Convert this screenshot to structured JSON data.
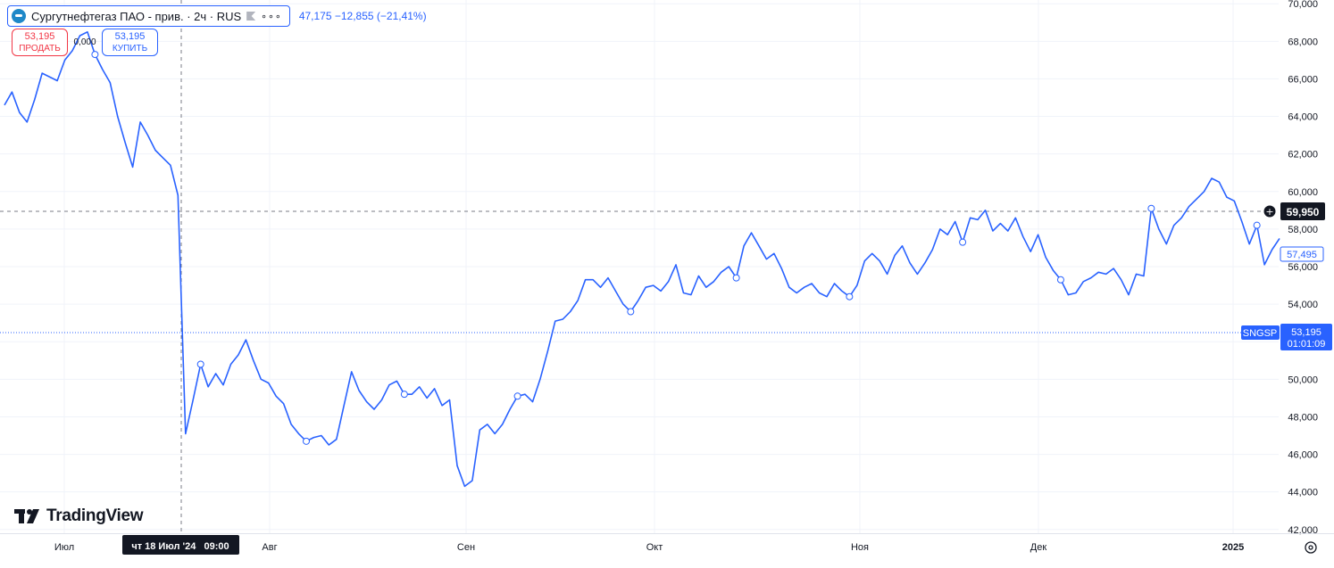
{
  "legend": {
    "symbol_title": "Сургутнефтегаз ПАО - прив. · 2ч · RUS",
    "change_text": "47,175 −12,855 (−21,41%)",
    "logo_icon": "sngs-logo-icon",
    "flag_icon": "flag-icon",
    "more_icon": "more-dots-icon",
    "more_label": "∘∘∘"
  },
  "trade": {
    "sell_price": "53,195",
    "sell_label": "ПРОДАТЬ",
    "spread": "0,000",
    "buy_price": "53,195",
    "buy_label": "КУПИТЬ"
  },
  "watermark": {
    "text": "TradingView",
    "icon": "tradingview-logo-icon"
  },
  "crosshair": {
    "time_label": "чт 18 Июл '24   09:00",
    "price_label": "59,950"
  },
  "price_tags": {
    "last": "57,495",
    "ticker": "SNGSP",
    "ticker_price": "53,195",
    "countdown": "01:01:09"
  },
  "colors": {
    "line": "#2962ff",
    "grid": "#f0f3fa",
    "text": "#131722",
    "sell": "#f23645",
    "dark": "#131722"
  },
  "chart_data": {
    "type": "line",
    "title": "Сургутнефтегаз ПАО - прив. · 2ч · RUS",
    "xlabel": "",
    "ylabel": "",
    "x_tick_labels": [
      "Июл",
      "Авг",
      "Сен",
      "Окт",
      "Ноя",
      "Дек",
      "2025"
    ],
    "y_tick_labels": [
      "42,000",
      "44,000",
      "46,000",
      "48,000",
      "50,000",
      "52,000",
      "54,000",
      "56,000",
      "58,000",
      "60,000",
      "62,000",
      "64,000",
      "66,000",
      "68,000",
      "70,000"
    ],
    "ylim": [
      41.8,
      70.2
    ],
    "grid": true,
    "series": [
      {
        "values": [
          {
            "x": "2024-07-01",
            "y": 64.6
          },
          {
            "x": "2024-07-02",
            "y": 65.3
          },
          {
            "x": "2024-07-03",
            "y": 64.2
          },
          {
            "x": "2024-07-04",
            "y": 63.7
          },
          {
            "x": "2024-07-05",
            "y": 64.9
          },
          {
            "x": "2024-07-06",
            "y": 66.3
          },
          {
            "x": "2024-07-08",
            "y": 65.9
          },
          {
            "x": "2024-07-09",
            "y": 67.0
          },
          {
            "x": "2024-07-10",
            "y": 67.5
          },
          {
            "x": "2024-07-11",
            "y": 68.3
          },
          {
            "x": "2024-07-12",
            "y": 68.5
          },
          {
            "x": "2024-07-13",
            "y": 67.3
          },
          {
            "x": "2024-07-14",
            "y": 66.5
          },
          {
            "x": "2024-07-15",
            "y": 65.8
          },
          {
            "x": "2024-07-16",
            "y": 64.0
          },
          {
            "x": "2024-07-17",
            "y": 62.6
          },
          {
            "x": "2024-07-18",
            "y": 61.3
          },
          {
            "x": "2024-07-19",
            "y": 63.7
          },
          {
            "x": "2024-07-20",
            "y": 63.0
          },
          {
            "x": "2024-07-21",
            "y": 62.2
          },
          {
            "x": "2024-07-22",
            "y": 61.8
          },
          {
            "x": "2024-07-23",
            "y": 61.4
          },
          {
            "x": "2024-07-24",
            "y": 59.8
          },
          {
            "x": "2024-07-25",
            "y": 47.1
          },
          {
            "x": "2024-07-26",
            "y": 48.9
          },
          {
            "x": "2024-07-27",
            "y": 50.8
          },
          {
            "x": "2024-07-28",
            "y": 49.6
          },
          {
            "x": "2024-07-29",
            "y": 50.3
          },
          {
            "x": "2024-07-30",
            "y": 49.7
          },
          {
            "x": "2024-07-31",
            "y": 50.8
          },
          {
            "x": "2024-08-01",
            "y": 51.3
          },
          {
            "x": "2024-08-02",
            "y": 52.1
          },
          {
            "x": "2024-08-03",
            "y": 51.0
          },
          {
            "x": "2024-08-04",
            "y": 50.0
          },
          {
            "x": "2024-08-05",
            "y": 49.8
          },
          {
            "x": "2024-08-06",
            "y": 49.1
          },
          {
            "x": "2024-08-07",
            "y": 48.7
          },
          {
            "x": "2024-08-08",
            "y": 47.6
          },
          {
            "x": "2024-08-09",
            "y": 47.1
          },
          {
            "x": "2024-08-10",
            "y": 46.7
          },
          {
            "x": "2024-08-11",
            "y": 46.9
          },
          {
            "x": "2024-08-12",
            "y": 47.0
          },
          {
            "x": "2024-08-13",
            "y": 46.5
          },
          {
            "x": "2024-08-14",
            "y": 46.8
          },
          {
            "x": "2024-08-15",
            "y": 48.6
          },
          {
            "x": "2024-08-16",
            "y": 50.4
          },
          {
            "x": "2024-08-17",
            "y": 49.4
          },
          {
            "x": "2024-08-18",
            "y": 48.8
          },
          {
            "x": "2024-08-19",
            "y": 48.4
          },
          {
            "x": "2024-08-20",
            "y": 48.9
          },
          {
            "x": "2024-08-21",
            "y": 49.7
          },
          {
            "x": "2024-08-22",
            "y": 49.9
          },
          {
            "x": "2024-08-23",
            "y": 49.2
          },
          {
            "x": "2024-08-24",
            "y": 49.2
          },
          {
            "x": "2024-08-25",
            "y": 49.6
          },
          {
            "x": "2024-08-26",
            "y": 49.0
          },
          {
            "x": "2024-08-27",
            "y": 49.5
          },
          {
            "x": "2024-08-28",
            "y": 48.6
          },
          {
            "x": "2024-08-29",
            "y": 48.9
          },
          {
            "x": "2024-08-30",
            "y": 45.4
          },
          {
            "x": "2024-08-31",
            "y": 44.3
          },
          {
            "x": "2024-09-01",
            "y": 44.6
          },
          {
            "x": "2024-09-02",
            "y": 47.3
          },
          {
            "x": "2024-09-03",
            "y": 47.6
          },
          {
            "x": "2024-09-04",
            "y": 47.1
          },
          {
            "x": "2024-09-05",
            "y": 47.6
          },
          {
            "x": "2024-09-06",
            "y": 48.4
          },
          {
            "x": "2024-09-07",
            "y": 49.1
          },
          {
            "x": "2024-09-08",
            "y": 49.2
          },
          {
            "x": "2024-09-09",
            "y": 48.8
          },
          {
            "x": "2024-09-10",
            "y": 50.0
          },
          {
            "x": "2024-09-11",
            "y": 51.5
          },
          {
            "x": "2024-09-12",
            "y": 53.1
          },
          {
            "x": "2024-09-13",
            "y": 53.2
          },
          {
            "x": "2024-09-14",
            "y": 53.6
          },
          {
            "x": "2024-09-15",
            "y": 54.2
          },
          {
            "x": "2024-09-16",
            "y": 55.3
          },
          {
            "x": "2024-09-17",
            "y": 55.3
          },
          {
            "x": "2024-09-18",
            "y": 54.9
          },
          {
            "x": "2024-09-19",
            "y": 55.4
          },
          {
            "x": "2024-09-20",
            "y": 54.7
          },
          {
            "x": "2024-09-21",
            "y": 54.0
          },
          {
            "x": "2024-09-22",
            "y": 53.6
          },
          {
            "x": "2024-09-23",
            "y": 54.2
          },
          {
            "x": "2024-09-24",
            "y": 54.9
          },
          {
            "x": "2024-09-25",
            "y": 55.0
          },
          {
            "x": "2024-09-26",
            "y": 54.7
          },
          {
            "x": "2024-09-27",
            "y": 55.2
          },
          {
            "x": "2024-09-28",
            "y": 56.1
          },
          {
            "x": "2024-09-29",
            "y": 54.6
          },
          {
            "x": "2024-09-30",
            "y": 54.5
          },
          {
            "x": "2024-10-01",
            "y": 55.5
          },
          {
            "x": "2024-10-02",
            "y": 54.9
          },
          {
            "x": "2024-10-03",
            "y": 55.2
          },
          {
            "x": "2024-10-04",
            "y": 55.7
          },
          {
            "x": "2024-10-05",
            "y": 56.0
          },
          {
            "x": "2024-10-06",
            "y": 55.4
          },
          {
            "x": "2024-10-07",
            "y": 57.1
          },
          {
            "x": "2024-10-08",
            "y": 57.8
          },
          {
            "x": "2024-10-09",
            "y": 57.1
          },
          {
            "x": "2024-10-10",
            "y": 56.4
          },
          {
            "x": "2024-10-11",
            "y": 56.7
          },
          {
            "x": "2024-10-12",
            "y": 55.9
          },
          {
            "x": "2024-10-13",
            "y": 54.9
          },
          {
            "x": "2024-10-14",
            "y": 54.6
          },
          {
            "x": "2024-10-15",
            "y": 54.9
          },
          {
            "x": "2024-10-16",
            "y": 55.1
          },
          {
            "x": "2024-10-17",
            "y": 54.6
          },
          {
            "x": "2024-10-18",
            "y": 54.4
          },
          {
            "x": "2024-10-19",
            "y": 55.1
          },
          {
            "x": "2024-10-20",
            "y": 54.7
          },
          {
            "x": "2024-10-21",
            "y": 54.4
          },
          {
            "x": "2024-10-22",
            "y": 55.0
          },
          {
            "x": "2024-10-23",
            "y": 56.3
          },
          {
            "x": "2024-10-24",
            "y": 56.7
          },
          {
            "x": "2024-10-25",
            "y": 56.3
          },
          {
            "x": "2024-10-26",
            "y": 55.6
          },
          {
            "x": "2024-10-27",
            "y": 56.6
          },
          {
            "x": "2024-10-28",
            "y": 57.1
          },
          {
            "x": "2024-10-29",
            "y": 56.2
          },
          {
            "x": "2024-10-30",
            "y": 55.6
          },
          {
            "x": "2024-10-31",
            "y": 56.2
          },
          {
            "x": "2024-11-01",
            "y": 56.9
          },
          {
            "x": "2024-11-02",
            "y": 58.0
          },
          {
            "x": "2024-11-03",
            "y": 57.7
          },
          {
            "x": "2024-11-04",
            "y": 58.4
          },
          {
            "x": "2024-11-05",
            "y": 57.3
          },
          {
            "x": "2024-11-06",
            "y": 58.6
          },
          {
            "x": "2024-11-07",
            "y": 58.5
          },
          {
            "x": "2024-11-08",
            "y": 59.0
          },
          {
            "x": "2024-11-09",
            "y": 57.9
          },
          {
            "x": "2024-11-10",
            "y": 58.3
          },
          {
            "x": "2024-11-11",
            "y": 57.9
          },
          {
            "x": "2024-11-12",
            "y": 58.6
          },
          {
            "x": "2024-11-13",
            "y": 57.6
          },
          {
            "x": "2024-11-14",
            "y": 56.8
          },
          {
            "x": "2024-11-15",
            "y": 57.7
          },
          {
            "x": "2024-11-16",
            "y": 56.5
          },
          {
            "x": "2024-11-17",
            "y": 55.8
          },
          {
            "x": "2024-11-18",
            "y": 55.3
          },
          {
            "x": "2024-11-19",
            "y": 54.5
          },
          {
            "x": "2024-11-20",
            "y": 54.6
          },
          {
            "x": "2024-11-21",
            "y": 55.2
          },
          {
            "x": "2024-11-22",
            "y": 55.4
          },
          {
            "x": "2024-11-23",
            "y": 55.7
          },
          {
            "x": "2024-11-24",
            "y": 55.6
          },
          {
            "x": "2024-11-25",
            "y": 55.9
          },
          {
            "x": "2024-11-26",
            "y": 55.3
          },
          {
            "x": "2024-11-27",
            "y": 54.5
          },
          {
            "x": "2024-11-28",
            "y": 55.6
          },
          {
            "x": "2024-11-29",
            "y": 55.5
          },
          {
            "x": "2024-11-30",
            "y": 59.1
          },
          {
            "x": "2024-12-01",
            "y": 58.0
          },
          {
            "x": "2024-12-02",
            "y": 57.2
          },
          {
            "x": "2024-12-03",
            "y": 58.2
          },
          {
            "x": "2024-12-04",
            "y": 58.6
          },
          {
            "x": "2024-12-05",
            "y": 59.2
          },
          {
            "x": "2024-12-06",
            "y": 59.6
          },
          {
            "x": "2024-12-07",
            "y": 60.0
          },
          {
            "x": "2024-12-08",
            "y": 60.7
          },
          {
            "x": "2024-12-09",
            "y": 60.5
          },
          {
            "x": "2024-12-10",
            "y": 59.7
          },
          {
            "x": "2024-12-11",
            "y": 59.5
          },
          {
            "x": "2024-12-12",
            "y": 58.4
          },
          {
            "x": "2024-12-13",
            "y": 57.2
          },
          {
            "x": "2024-12-14",
            "y": 58.2
          },
          {
            "x": "2024-12-15",
            "y": 56.1
          },
          {
            "x": "2024-12-16",
            "y": 56.9
          },
          {
            "x": "2024-12-17",
            "y": 57.5
          }
        ]
      }
    ]
  }
}
